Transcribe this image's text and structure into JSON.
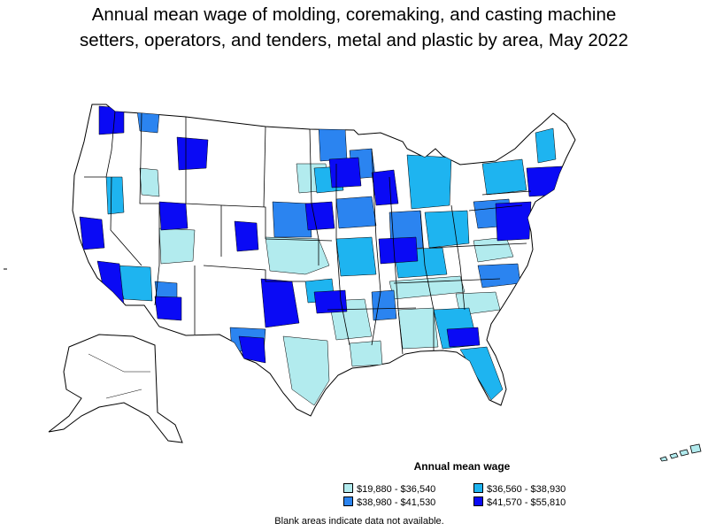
{
  "title_line1": "Annual mean wage of molding, coremaking, and casting machine",
  "title_line2": "setters, operators, and tenders, metal and plastic by area, May 2022",
  "legend": {
    "title": "Annual mean wage",
    "items": [
      {
        "label": "$19,880 - $36,540",
        "color": "#b2ebee"
      },
      {
        "label": "$36,560 - $38,930",
        "color": "#1eb4f0"
      },
      {
        "label": "$38,980 - $41,530",
        "color": "#2b84f0"
      },
      {
        "label": "$41,570 - $55,810",
        "color": "#0a0af5"
      }
    ]
  },
  "footnote": "Blank areas indicate data not available.",
  "colors": {
    "no_data": "#ffffff",
    "border": "#000000"
  }
}
